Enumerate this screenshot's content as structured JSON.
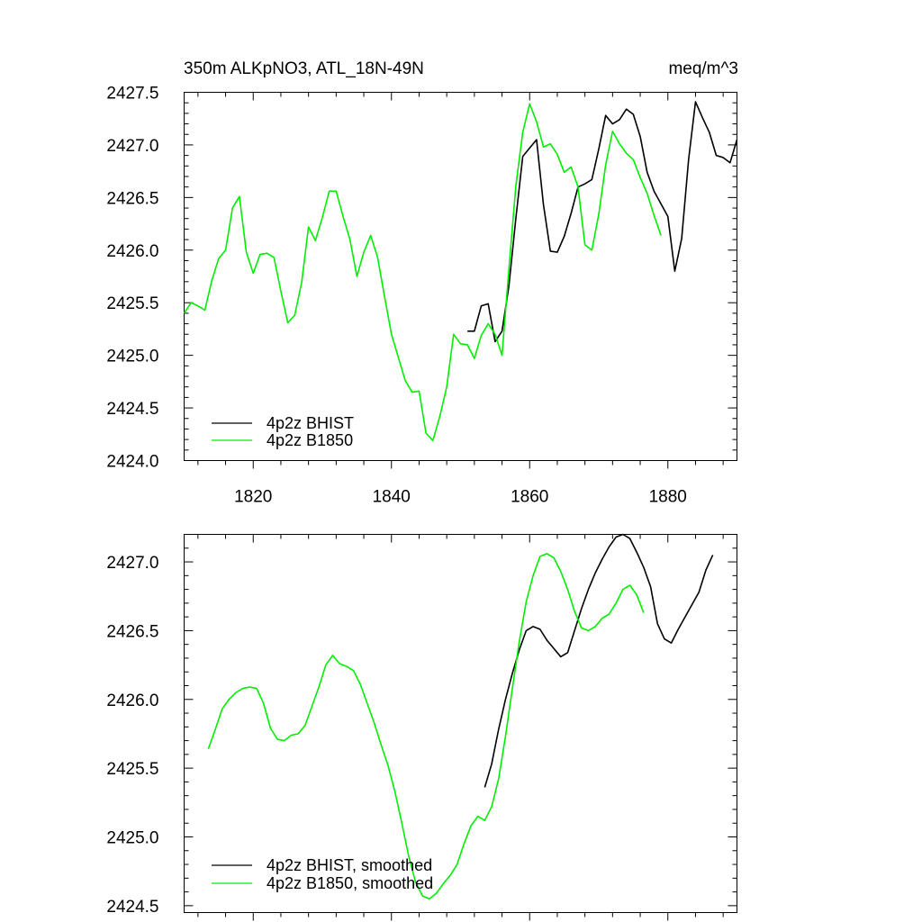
{
  "chart_data": [
    {
      "type": "line",
      "title": "350m ALKpNO3, ATL_18N-49N",
      "units": "meq/m^3",
      "xlim": [
        1810,
        1890
      ],
      "ylim": [
        2424.0,
        2427.5
      ],
      "x_ticks": [
        1820,
        1840,
        1860,
        1880
      ],
      "x_tick_labels": [
        "1820",
        "1840",
        "1860",
        "1880"
      ],
      "y_ticks": [
        2424.0,
        2424.5,
        2425.0,
        2425.5,
        2426.0,
        2426.5,
        2427.0,
        2427.5
      ],
      "y_tick_labels": [
        "2424.0",
        "2424.5",
        "2425.0",
        "2425.5",
        "2426.0",
        "2426.5",
        "2427.0",
        "2427.5"
      ],
      "legend_position": "bottom-left",
      "series": [
        {
          "name": "4p2z BHIST",
          "color": "#000000",
          "x": [
            1851,
            1852,
            1853,
            1854,
            1855,
            1856,
            1857,
            1858,
            1859,
            1860,
            1861,
            1862,
            1863,
            1864,
            1865,
            1866,
            1867,
            1868,
            1869,
            1870,
            1871,
            1872,
            1873,
            1874,
            1875,
            1876,
            1877,
            1878,
            1879,
            1880,
            1881,
            1882,
            1883,
            1884,
            1885,
            1886,
            1887,
            1888,
            1889,
            1890
          ],
          "y": [
            2425.23,
            2425.23,
            2425.47,
            2425.49,
            2425.13,
            2425.23,
            2425.66,
            2426.3,
            2426.89,
            2426.97,
            2427.05,
            2426.43,
            2425.99,
            2425.98,
            2426.13,
            2426.35,
            2426.6,
            2426.63,
            2426.67,
            2426.96,
            2427.28,
            2427.2,
            2427.24,
            2427.34,
            2427.29,
            2427.08,
            2426.74,
            2426.56,
            2426.44,
            2426.32,
            2425.8,
            2426.11,
            2426.86,
            2427.41,
            2427.26,
            2427.12,
            2426.9,
            2426.88,
            2426.83,
            2427.05
          ]
        },
        {
          "name": "4p2z B1850",
          "color": "#00ee00",
          "x": [
            1810,
            1811,
            1812,
            1813,
            1814,
            1815,
            1816,
            1817,
            1818,
            1819,
            1820,
            1821,
            1822,
            1823,
            1824,
            1825,
            1826,
            1827,
            1828,
            1829,
            1830,
            1831,
            1832,
            1833,
            1834,
            1835,
            1836,
            1837,
            1838,
            1839,
            1840,
            1841,
            1842,
            1843,
            1844,
            1845,
            1846,
            1847,
            1848,
            1849,
            1850,
            1851,
            1852,
            1853,
            1854,
            1855,
            1856,
            1857,
            1858,
            1859,
            1860,
            1861,
            1862,
            1863,
            1864,
            1865,
            1866,
            1867,
            1868,
            1869,
            1870,
            1871,
            1872,
            1873,
            1874,
            1875,
            1876,
            1877,
            1878,
            1879,
            1880
          ],
          "y": [
            2425.4,
            2425.5,
            2425.47,
            2425.43,
            2425.71,
            2425.92,
            2426.0,
            2426.4,
            2426.51,
            2425.98,
            2425.78,
            2425.96,
            2425.97,
            2425.93,
            2425.61,
            2425.31,
            2425.38,
            2425.69,
            2426.22,
            2426.09,
            2426.31,
            2426.56,
            2426.56,
            2426.32,
            2426.1,
            2425.75,
            2425.98,
            2426.14,
            2425.93,
            2425.56,
            2425.2,
            2424.98,
            2424.76,
            2424.65,
            2424.66,
            2424.26,
            2424.19,
            2424.42,
            2424.7,
            2425.2,
            2425.11,
            2425.1,
            2424.97,
            2425.19,
            2425.3,
            2425.2,
            2425.0,
            2425.82,
            2426.61,
            2427.12,
            2427.39,
            2427.22,
            2426.98,
            2427.01,
            2426.91,
            2426.74,
            2426.79,
            2426.6,
            2426.05,
            2426.0,
            2426.34,
            2426.81,
            2427.13,
            2427.01,
            2426.92,
            2426.86,
            2426.69,
            2426.54,
            2426.33,
            2426.14,
            null
          ]
        }
      ]
    },
    {
      "type": "line",
      "xlim": [
        1810,
        1890
      ],
      "ylim": [
        2424.45,
        2427.2
      ],
      "x_ticks": [
        1820,
        1840,
        1860,
        1880
      ],
      "y_ticks": [
        2424.5,
        2425.0,
        2425.5,
        2426.0,
        2426.5,
        2427.0
      ],
      "y_tick_labels": [
        "2424.5",
        "2425.0",
        "2425.5",
        "2426.0",
        "2426.5",
        "2427.0"
      ],
      "legend_position": "bottom-left",
      "series": [
        {
          "name": "4p2z BHIST, smoothed",
          "color": "#000000",
          "x": [
            1853.5,
            1854.5,
            1855.5,
            1856.5,
            1857.5,
            1858.5,
            1859.5,
            1860.5,
            1861.5,
            1862.5,
            1863.5,
            1864.5,
            1865.5,
            1866.5,
            1867.5,
            1868.5,
            1869.5,
            1870.5,
            1871.5,
            1872.5,
            1873.5,
            1874.5,
            1875.5,
            1876.5,
            1877.5,
            1878.5,
            1879.5,
            1880.5,
            1881.5,
            1882.5,
            1883.5,
            1884.5,
            1885.5,
            1886.5
          ],
          "y": [
            2425.36,
            2425.53,
            2425.78,
            2426.0,
            2426.19,
            2426.36,
            2426.5,
            2426.53,
            2426.51,
            2426.43,
            2426.37,
            2426.31,
            2426.34,
            2426.5,
            2426.66,
            2426.8,
            2426.92,
            2427.02,
            2427.11,
            2427.18,
            2427.2,
            2427.17,
            2427.07,
            2426.96,
            2426.82,
            2426.55,
            2426.44,
            2426.41,
            2426.51,
            2426.6,
            2426.69,
            2426.78,
            2426.94,
            2427.05
          ]
        },
        {
          "name": "4p2z B1850, smoothed",
          "color": "#00ee00",
          "x": [
            1813.5,
            1814.5,
            1815.5,
            1816.5,
            1817.5,
            1818.5,
            1819.5,
            1820.5,
            1821.5,
            1822.5,
            1823.5,
            1824.5,
            1825.5,
            1826.5,
            1827.5,
            1828.5,
            1829.5,
            1830.5,
            1831.5,
            1832.5,
            1833.5,
            1834.5,
            1835.5,
            1836.5,
            1837.5,
            1838.5,
            1839.5,
            1840.5,
            1841.5,
            1842.5,
            1843.5,
            1844.5,
            1845.5,
            1846.5,
            1847.5,
            1848.5,
            1849.5,
            1850.5,
            1851.5,
            1852.5,
            1853.5,
            1854.5,
            1855.5,
            1856.5,
            1857.5,
            1858.5,
            1859.5,
            1860.5,
            1861.5,
            1862.5,
            1863.5,
            1864.5,
            1865.5,
            1866.5,
            1867.5,
            1868.5,
            1869.5,
            1870.5,
            1871.5,
            1872.5,
            1873.5,
            1874.5,
            1875.5,
            1876.5
          ],
          "y": [
            2425.64,
            2425.78,
            2425.93,
            2426.0,
            2426.05,
            2426.08,
            2426.09,
            2426.08,
            2425.97,
            2425.79,
            2425.71,
            2425.7,
            2425.74,
            2425.75,
            2425.81,
            2425.95,
            2426.09,
            2426.25,
            2426.32,
            2426.26,
            2426.24,
            2426.21,
            2426.11,
            2425.97,
            2425.83,
            2425.67,
            2425.52,
            2425.33,
            2425.1,
            2424.86,
            2424.67,
            2424.57,
            2424.55,
            2424.59,
            2424.66,
            2424.72,
            2424.8,
            2424.95,
            2425.08,
            2425.15,
            2425.12,
            2425.22,
            2425.42,
            2425.73,
            2426.08,
            2426.42,
            2426.71,
            2426.9,
            2427.04,
            2427.06,
            2427.03,
            2426.93,
            2426.8,
            2426.64,
            2426.52,
            2426.5,
            2426.53,
            2426.59,
            2426.62,
            2426.7,
            2426.8,
            2426.83,
            2426.76,
            2426.63
          ]
        }
      ]
    }
  ]
}
